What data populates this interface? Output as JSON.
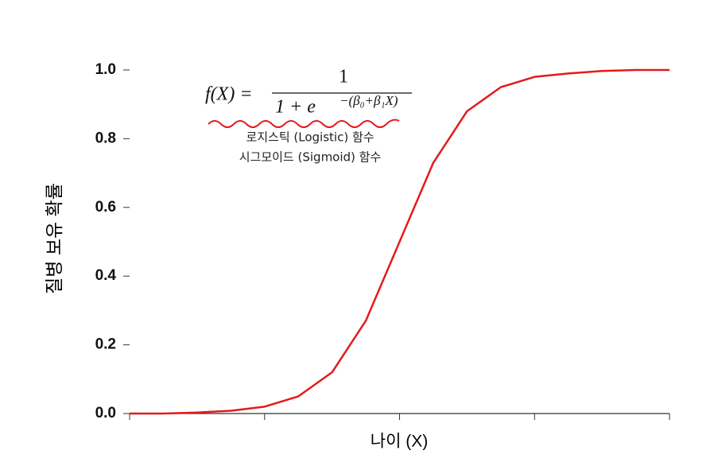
{
  "chart_data": {
    "type": "line",
    "ylabel": "질병 보유 확률",
    "xlabel": "나이 (X)",
    "formula": {
      "lhs": "f(X) =",
      "numerator": "1",
      "denominator": "1 + e",
      "exponent": "−(β₀+β₁X)"
    },
    "annotations": [
      "로지스틱 (Logistic) 함수",
      "시그모이드 (Sigmoid) 함수"
    ],
    "x": [
      0,
      1,
      2,
      3,
      4,
      5,
      6,
      7,
      8,
      9,
      10,
      11,
      12,
      13,
      14,
      15,
      16
    ],
    "series": [
      {
        "color": "#e41a1c",
        "values": [
          0,
          0,
          0.003,
          0.008,
          0.02,
          0.05,
          0.12,
          0.27,
          0.5,
          0.73,
          0.88,
          0.95,
          0.98,
          0.99,
          0.997,
          1.0,
          1.0
        ]
      }
    ],
    "xlim": [
      0,
      16
    ],
    "ylim": [
      0,
      1
    ],
    "yticks": [
      {
        "value": 0,
        "label": "0.0"
      },
      0.2,
      0.4,
      0.6,
      0.8,
      {
        "value": 1,
        "label": "1.0"
      }
    ]
  }
}
